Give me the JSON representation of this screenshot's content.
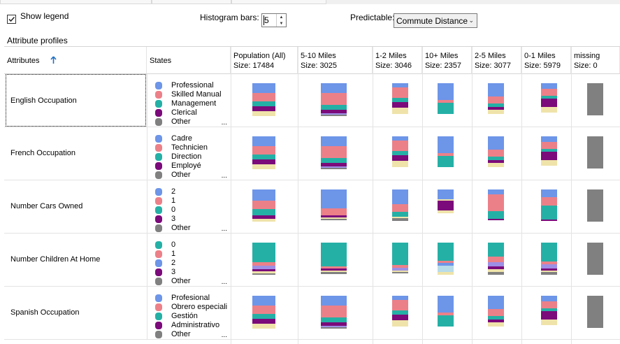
{
  "toolbar": {
    "show_legend_label": "Show legend",
    "show_legend_checked": true,
    "histogram_label": "Histogram bars:",
    "histogram_value": "5",
    "predictable_label": "Predictable:",
    "predictable_value": "Commute Distance"
  },
  "section_title": "Attribute profiles",
  "columns": {
    "attributes": "Attributes",
    "states": "States",
    "populations": [
      {
        "label": "Population (All)",
        "size": "Size: 17484"
      },
      {
        "label": "5-10 Miles",
        "size": "Size: 3025"
      },
      {
        "label": "1-2 Miles",
        "size": "Size: 3046"
      },
      {
        "label": "10+ Miles",
        "size": "Size: 2357"
      },
      {
        "label": "2-5 Miles",
        "size": "Size: 3077"
      },
      {
        "label": "0-1 Miles",
        "size": "Size: 5979"
      },
      {
        "label": "missing",
        "size": "Size: 0"
      }
    ]
  },
  "colors": {
    "blue": "#6d95e8",
    "pink": "#ec8088",
    "teal": "#25b0a6",
    "purple": "#7b0a7a",
    "gray": "#808080",
    "beige": "#efe3aa",
    "lightblue": "#b8dce8",
    "lavender": "#9d8fe6",
    "missing": "#808080"
  },
  "rows": [
    {
      "name": "English Occupation",
      "focused": true,
      "states": [
        {
          "label": "Professional",
          "color": "blue"
        },
        {
          "label": "Skilled Manual",
          "color": "pink"
        },
        {
          "label": "Management",
          "color": "teal"
        },
        {
          "label": "Clerical",
          "color": "purple"
        },
        {
          "label": "Other",
          "color": "gray"
        }
      ],
      "histograms": [
        [
          [
            "blue",
            14
          ],
          [
            "pink",
            12
          ],
          [
            "teal",
            7
          ],
          [
            "purple",
            7
          ],
          [
            "beige",
            7
          ]
        ],
        [
          [
            "blue",
            14
          ],
          [
            "pink",
            17
          ],
          [
            "teal",
            7
          ],
          [
            "purple",
            5
          ],
          [
            "lavender",
            2
          ],
          [
            "gray",
            2
          ]
        ],
        [
          [
            "blue",
            6
          ],
          [
            "pink",
            15
          ],
          [
            "teal",
            6
          ],
          [
            "purple",
            8
          ],
          [
            "beige",
            9
          ]
        ],
        [
          [
            "blue",
            24
          ],
          [
            "pink",
            4
          ],
          [
            "teal",
            16
          ]
        ],
        [
          [
            "blue",
            19
          ],
          [
            "pink",
            10
          ],
          [
            "teal",
            5
          ],
          [
            "purple",
            4
          ],
          [
            "beige",
            6
          ]
        ],
        [
          [
            "blue",
            8
          ],
          [
            "pink",
            10
          ],
          [
            "teal",
            4
          ],
          [
            "purple",
            12
          ],
          [
            "beige",
            8
          ]
        ],
        [
          [
            "missing",
            46
          ]
        ]
      ]
    },
    {
      "name": "French Occupation",
      "focused": false,
      "states": [
        {
          "label": "Cadre",
          "color": "blue"
        },
        {
          "label": "Technicien",
          "color": "pink"
        },
        {
          "label": "Direction",
          "color": "teal"
        },
        {
          "label": "Employé",
          "color": "purple"
        },
        {
          "label": "Other",
          "color": "gray"
        }
      ],
      "histograms": [
        [
          [
            "blue",
            14
          ],
          [
            "pink",
            12
          ],
          [
            "teal",
            7
          ],
          [
            "purple",
            7
          ],
          [
            "beige",
            7
          ]
        ],
        [
          [
            "blue",
            14
          ],
          [
            "pink",
            17
          ],
          [
            "teal",
            7
          ],
          [
            "purple",
            5
          ],
          [
            "lavender",
            2
          ],
          [
            "gray",
            2
          ]
        ],
        [
          [
            "blue",
            6
          ],
          [
            "pink",
            15
          ],
          [
            "teal",
            6
          ],
          [
            "purple",
            8
          ],
          [
            "beige",
            9
          ]
        ],
        [
          [
            "blue",
            24
          ],
          [
            "pink",
            4
          ],
          [
            "teal",
            16
          ]
        ],
        [
          [
            "blue",
            19
          ],
          [
            "pink",
            10
          ],
          [
            "teal",
            5
          ],
          [
            "purple",
            4
          ],
          [
            "beige",
            6
          ]
        ],
        [
          [
            "blue",
            8
          ],
          [
            "pink",
            10
          ],
          [
            "teal",
            4
          ],
          [
            "purple",
            12
          ],
          [
            "beige",
            8
          ]
        ],
        [
          [
            "missing",
            46
          ]
        ]
      ]
    },
    {
      "name": "Number Cars Owned",
      "focused": false,
      "states": [
        {
          "label": "2",
          "color": "blue"
        },
        {
          "label": "1",
          "color": "pink"
        },
        {
          "label": "0",
          "color": "teal"
        },
        {
          "label": "3",
          "color": "purple"
        },
        {
          "label": "Other",
          "color": "gray"
        }
      ],
      "histograms": [
        [
          [
            "blue",
            16
          ],
          [
            "pink",
            12
          ],
          [
            "teal",
            9
          ],
          [
            "purple",
            5
          ],
          [
            "beige",
            4
          ]
        ],
        [
          [
            "blue",
            27
          ],
          [
            "pink",
            10
          ],
          [
            "purple",
            3
          ],
          [
            "beige",
            2
          ],
          [
            "gray",
            2
          ]
        ],
        [
          [
            "blue",
            21
          ],
          [
            "pink",
            11
          ],
          [
            "teal",
            7
          ],
          [
            "beige",
            2
          ],
          [
            "gray",
            4
          ]
        ],
        [
          [
            "blue",
            14
          ],
          [
            "beige",
            2
          ],
          [
            "purple",
            14
          ],
          [
            "beige",
            4
          ]
        ],
        [
          [
            "blue",
            7
          ],
          [
            "pink",
            24
          ],
          [
            "teal",
            11
          ],
          [
            "purple",
            2
          ]
        ],
        [
          [
            "blue",
            11
          ],
          [
            "pink",
            12
          ],
          [
            "teal",
            20
          ],
          [
            "purple",
            2
          ]
        ],
        [
          [
            "missing",
            46
          ]
        ]
      ]
    },
    {
      "name": "Number Children At Home",
      "focused": false,
      "states": [
        {
          "label": "0",
          "color": "teal"
        },
        {
          "label": "1",
          "color": "pink"
        },
        {
          "label": "2",
          "color": "blue"
        },
        {
          "label": "3",
          "color": "purple"
        },
        {
          "label": "Other",
          "color": "gray"
        }
      ],
      "histograms": [
        [
          [
            "teal",
            28
          ],
          [
            "pink",
            5
          ],
          [
            "lavender",
            5
          ],
          [
            "purple",
            3
          ],
          [
            "beige",
            3
          ],
          [
            "gray",
            2
          ]
        ],
        [
          [
            "teal",
            34
          ],
          [
            "pink",
            3
          ],
          [
            "purple",
            3
          ],
          [
            "beige",
            2
          ],
          [
            "gray",
            3
          ]
        ],
        [
          [
            "teal",
            32
          ],
          [
            "pink",
            4
          ],
          [
            "lavender",
            4
          ],
          [
            "beige",
            2
          ],
          [
            "gray",
            2
          ]
        ],
        [
          [
            "teal",
            26
          ],
          [
            "pink",
            3
          ],
          [
            "blue",
            4
          ],
          [
            "lightblue",
            9
          ],
          [
            "beige",
            4
          ]
        ],
        [
          [
            "teal",
            20
          ],
          [
            "pink",
            8
          ],
          [
            "lavender",
            6
          ],
          [
            "purple",
            4
          ],
          [
            "beige",
            4
          ],
          [
            "gray",
            4
          ]
        ],
        [
          [
            "teal",
            27
          ],
          [
            "pink",
            4
          ],
          [
            "lavender",
            6
          ],
          [
            "purple",
            3
          ],
          [
            "beige",
            2
          ],
          [
            "gray",
            4
          ]
        ],
        [
          [
            "missing",
            46
          ]
        ]
      ]
    },
    {
      "name": "Spanish Occupation",
      "focused": false,
      "states": [
        {
          "label": "Profesional",
          "color": "blue"
        },
        {
          "label": "Obrero especiali",
          "color": "pink"
        },
        {
          "label": "Gestión",
          "color": "teal"
        },
        {
          "label": "Administrativo",
          "color": "purple"
        },
        {
          "label": "Other",
          "color": "gray"
        }
      ],
      "histograms": [
        [
          [
            "blue",
            14
          ],
          [
            "pink",
            12
          ],
          [
            "teal",
            7
          ],
          [
            "purple",
            7
          ],
          [
            "beige",
            7
          ]
        ],
        [
          [
            "blue",
            14
          ],
          [
            "pink",
            17
          ],
          [
            "teal",
            7
          ],
          [
            "purple",
            5
          ],
          [
            "lavender",
            2
          ],
          [
            "gray",
            2
          ]
        ],
        [
          [
            "blue",
            6
          ],
          [
            "pink",
            15
          ],
          [
            "teal",
            6
          ],
          [
            "purple",
            8
          ],
          [
            "beige",
            9
          ]
        ],
        [
          [
            "blue",
            24
          ],
          [
            "pink",
            4
          ],
          [
            "teal",
            16
          ]
        ],
        [
          [
            "blue",
            19
          ],
          [
            "pink",
            10
          ],
          [
            "teal",
            5
          ],
          [
            "purple",
            4
          ],
          [
            "beige",
            6
          ]
        ],
        [
          [
            "blue",
            8
          ],
          [
            "pink",
            10
          ],
          [
            "teal",
            4
          ],
          [
            "purple",
            12
          ],
          [
            "beige",
            8
          ]
        ],
        [
          [
            "missing",
            46
          ]
        ]
      ]
    }
  ],
  "ellipsis": "..."
}
